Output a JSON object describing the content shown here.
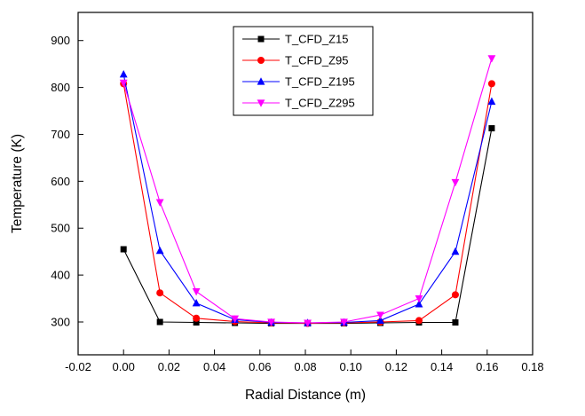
{
  "chart_data": {
    "type": "line",
    "title": "",
    "xlabel": "Radial Distance (m)",
    "ylabel": "Temperature (K)",
    "xlim": [
      -0.02,
      0.18
    ],
    "ylim": [
      230,
      960
    ],
    "xticks": [
      -0.02,
      0.0,
      0.02,
      0.04,
      0.06,
      0.08,
      0.1,
      0.12,
      0.14,
      0.16,
      0.18
    ],
    "yticks": [
      300,
      400,
      500,
      600,
      700,
      800,
      900
    ],
    "grid": false,
    "legend_position": "top-center-inside",
    "x": [
      0.0,
      0.016,
      0.032,
      0.049,
      0.065,
      0.081,
      0.097,
      0.113,
      0.13,
      0.146,
      0.162
    ],
    "series": [
      {
        "name": "T_CFD_Z15",
        "color": "#000000",
        "marker": "square",
        "values": [
          455,
          300,
          299,
          298,
          297,
          297,
          297,
          298,
          299,
          299,
          713
        ]
      },
      {
        "name": "T_CFD_Z95",
        "color": "#ff0000",
        "marker": "circle",
        "values": [
          808,
          362,
          308,
          301,
          298,
          297,
          298,
          300,
          303,
          358,
          808
        ]
      },
      {
        "name": "T_CFD_Z195",
        "color": "#0000ff",
        "marker": "triangle-up",
        "values": [
          828,
          452,
          340,
          305,
          299,
          298,
          299,
          303,
          338,
          450,
          770
        ]
      },
      {
        "name": "T_CFD_Z295",
        "color": "#ff00ff",
        "marker": "triangle-down",
        "values": [
          810,
          555,
          365,
          307,
          300,
          298,
          300,
          315,
          350,
          598,
          862
        ]
      }
    ]
  }
}
